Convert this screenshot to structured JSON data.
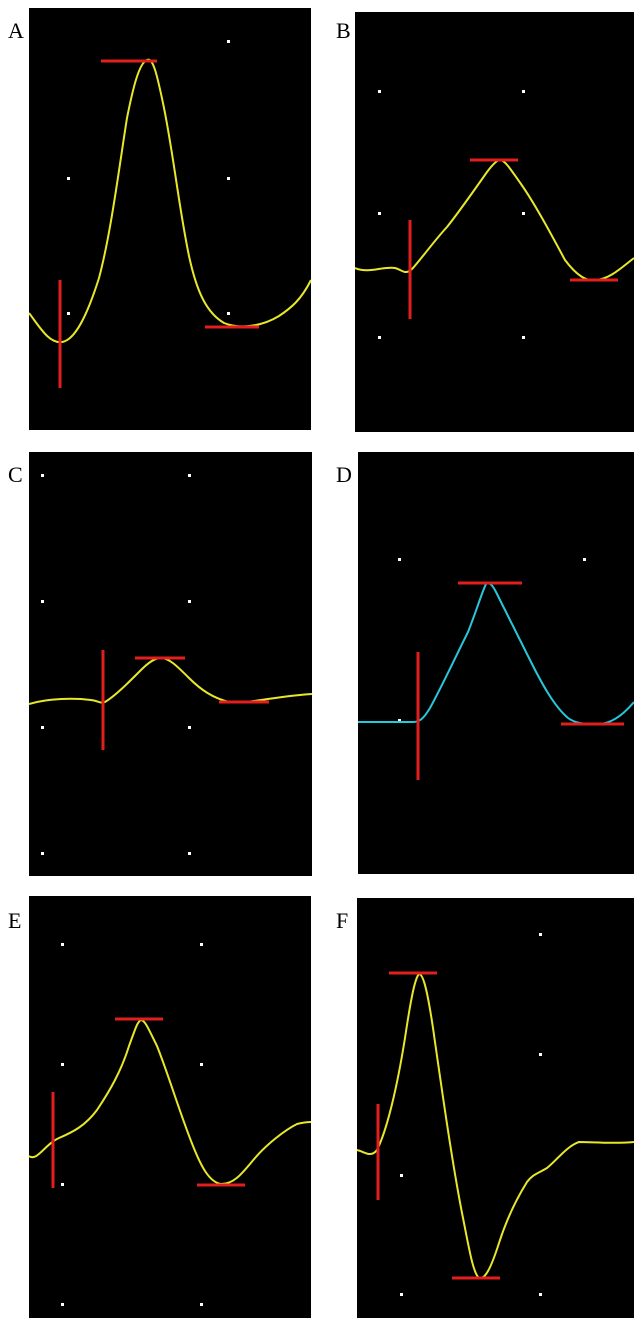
{
  "panels": [
    {
      "label": "A",
      "trace_color": "#e8e82a",
      "marker_color": "#e21e1e"
    },
    {
      "label": "B",
      "trace_color": "#e8e82a",
      "marker_color": "#e21e1e"
    },
    {
      "label": "C",
      "trace_color": "#e8e82a",
      "marker_color": "#e21e1e"
    },
    {
      "label": "D",
      "trace_color": "#28c8dc",
      "marker_color": "#e21e1e"
    },
    {
      "label": "E",
      "trace_color": "#e8e82a",
      "marker_color": "#e21e1e"
    },
    {
      "label": "F",
      "trace_color": "#e8e82a",
      "marker_color": "#e21e1e"
    }
  ],
  "background_color": "#000000",
  "grid_dot_color": "#ffffff"
}
